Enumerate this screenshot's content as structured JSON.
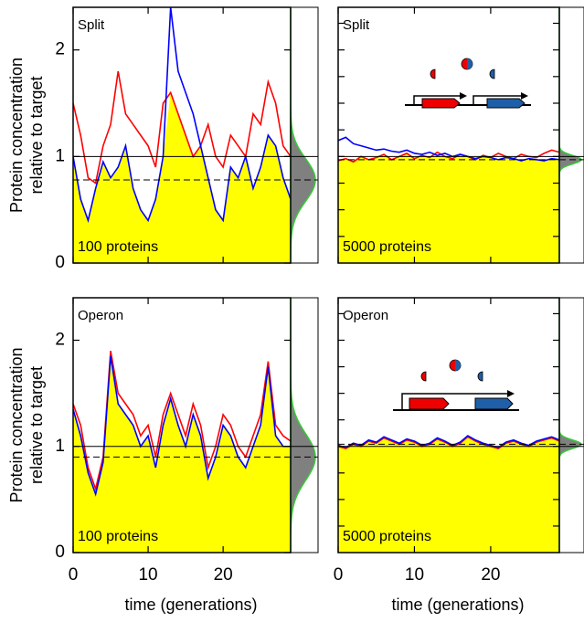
{
  "chart_data": [
    {
      "type": "line",
      "title": "Split",
      "annotation": "100 proteins",
      "ylabel": [
        "Protein concentration",
        "relative to target"
      ],
      "x": [
        0,
        1,
        2,
        3,
        4,
        5,
        6,
        7,
        8,
        9,
        10,
        11,
        12,
        13,
        14,
        15,
        16,
        17,
        18,
        19,
        20,
        21,
        22,
        23,
        24,
        25,
        26,
        27,
        28,
        29
      ],
      "series": [
        {
          "color": "#ff0000",
          "values": [
            1.5,
            1.2,
            0.8,
            0.75,
            1.1,
            1.3,
            1.8,
            1.4,
            1.3,
            1.2,
            1.1,
            0.9,
            1.5,
            1.6,
            1.4,
            1.2,
            1.0,
            1.1,
            1.3,
            1.0,
            0.9,
            1.2,
            1.1,
            1.0,
            1.4,
            1.3,
            1.7,
            1.5,
            1.1,
            1.0
          ]
        },
        {
          "color": "#0000ff",
          "values": [
            1.0,
            0.6,
            0.4,
            0.7,
            0.95,
            0.8,
            0.9,
            1.1,
            0.7,
            0.5,
            0.4,
            0.6,
            1.0,
            2.4,
            1.8,
            1.6,
            1.4,
            1.1,
            0.8,
            0.5,
            0.4,
            0.9,
            0.8,
            1.0,
            0.7,
            0.9,
            1.2,
            1.1,
            0.8,
            0.6
          ]
        }
      ],
      "fill_color": "#ffff00",
      "reference_line": 1,
      "distribution": {
        "mean": 0.78,
        "sd": 0.2,
        "color": "#808080",
        "edge": "#33cc33"
      },
      "xlim": [
        0,
        29
      ],
      "ylim": [
        0,
        2.4
      ],
      "xticks": [
        0,
        10,
        20
      ],
      "yticks": [
        0,
        1,
        2
      ],
      "xtick_labels": false,
      "ytick_labels": true
    },
    {
      "type": "line",
      "title": "Split",
      "annotation": "5000 proteins",
      "x": [
        0,
        1,
        2,
        3,
        4,
        5,
        6,
        7,
        8,
        9,
        10,
        11,
        12,
        13,
        14,
        15,
        16,
        17,
        18,
        19,
        20,
        21,
        22,
        23,
        24,
        25,
        26,
        27,
        28,
        29
      ],
      "series": [
        {
          "color": "#ff0000",
          "values": [
            0.96,
            0.98,
            0.95,
            1.0,
            0.97,
            0.99,
            1.02,
            0.97,
            1.0,
            1.03,
            0.98,
            1.01,
            0.99,
            1.04,
            1.0,
            0.98,
            1.02,
            1.0,
            0.97,
            1.01,
            0.99,
            1.03,
            1.0,
            0.98,
            1.02,
            1.0,
            0.99,
            1.03,
            1.06,
            1.04
          ]
        },
        {
          "color": "#0000ff",
          "values": [
            1.15,
            1.18,
            1.12,
            1.1,
            1.08,
            1.06,
            1.07,
            1.05,
            1.04,
            1.06,
            1.03,
            1.02,
            1.04,
            1.01,
            1.03,
            1.0,
            1.02,
            1.0,
            0.98,
            1.0,
            0.99,
            0.97,
            0.99,
            0.98,
            0.96,
            0.98,
            0.97,
            0.96,
            0.98,
            0.97
          ]
        }
      ],
      "fill_color": "#ffff00",
      "reference_line": 1,
      "distribution": {
        "mean": 0.97,
        "sd": 0.04,
        "color": "#808080",
        "edge": "#33cc33"
      },
      "xlim": [
        0,
        29
      ],
      "ylim": [
        0,
        2.4
      ],
      "xticks": [
        0,
        10,
        20
      ],
      "yticks": [
        0.25,
        0.5,
        0.75,
        1,
        1.25,
        1.5,
        1.75,
        2,
        2.25
      ],
      "xtick_labels": false,
      "ytick_labels": false
    },
    {
      "type": "line",
      "title": "Operon",
      "annotation": "100 proteins",
      "ylabel": [
        "Protein concentration",
        "relative to target"
      ],
      "xlabel": "time (generations)",
      "x": [
        0,
        1,
        2,
        3,
        4,
        5,
        6,
        7,
        8,
        9,
        10,
        11,
        12,
        13,
        14,
        15,
        16,
        17,
        18,
        19,
        20,
        21,
        22,
        23,
        24,
        25,
        26,
        27,
        28,
        29
      ],
      "series": [
        {
          "color": "#ff0000",
          "values": [
            1.4,
            1.2,
            0.8,
            0.6,
            0.9,
            1.9,
            1.5,
            1.4,
            1.3,
            1.1,
            1.2,
            0.9,
            1.3,
            1.5,
            1.3,
            1.1,
            1.4,
            1.2,
            0.8,
            1.0,
            1.3,
            1.2,
            1.0,
            0.9,
            1.1,
            1.3,
            1.8,
            1.2,
            1.1,
            1.05
          ]
        },
        {
          "color": "#0000ff",
          "values": [
            1.35,
            1.1,
            0.75,
            0.55,
            0.85,
            1.85,
            1.4,
            1.3,
            1.2,
            1.0,
            1.1,
            0.8,
            1.2,
            1.45,
            1.2,
            1.0,
            1.3,
            1.1,
            0.7,
            0.9,
            1.2,
            1.1,
            0.9,
            0.8,
            1.0,
            1.2,
            1.75,
            1.1,
            1.0,
            1.0
          ]
        }
      ],
      "fill_color": "#ffff00",
      "reference_line": 1,
      "distribution": {
        "mean": 0.9,
        "sd": 0.22,
        "color": "#808080",
        "edge": "#33cc33"
      },
      "xlim": [
        0,
        29
      ],
      "ylim": [
        0,
        2.4
      ],
      "xticks": [
        0,
        10,
        20
      ],
      "yticks": [
        0,
        1,
        2
      ],
      "xtick_labels": true,
      "ytick_labels": true
    },
    {
      "type": "line",
      "title": "Operon",
      "annotation": "5000 proteins",
      "xlabel": "time (generations)",
      "x": [
        0,
        1,
        2,
        3,
        4,
        5,
        6,
        7,
        8,
        9,
        10,
        11,
        12,
        13,
        14,
        15,
        16,
        17,
        18,
        19,
        20,
        21,
        22,
        23,
        24,
        25,
        26,
        27,
        28,
        29
      ],
      "series": [
        {
          "color": "#ff0000",
          "values": [
            1.0,
            0.98,
            1.02,
            1.0,
            1.05,
            1.03,
            1.08,
            1.05,
            1.02,
            1.06,
            1.04,
            1.0,
            1.02,
            1.07,
            1.04,
            1.0,
            1.03,
            1.09,
            1.05,
            1.02,
            1.0,
            0.98,
            1.03,
            1.05,
            1.02,
            1.0,
            1.04,
            1.06,
            1.08,
            1.05
          ]
        },
        {
          "color": "#0000ff",
          "values": [
            1.01,
            0.99,
            1.03,
            1.01,
            1.06,
            1.04,
            1.09,
            1.06,
            1.03,
            1.07,
            1.05,
            1.01,
            1.03,
            1.08,
            1.05,
            1.01,
            1.04,
            1.1,
            1.06,
            1.03,
            1.01,
            0.99,
            1.04,
            1.06,
            1.03,
            1.01,
            1.05,
            1.07,
            1.09,
            1.06
          ]
        }
      ],
      "fill_color": "#ffff00",
      "reference_line": 1,
      "distribution": {
        "mean": 1.02,
        "sd": 0.04,
        "color": "#808080",
        "edge": "#33cc33"
      },
      "xlim": [
        0,
        29
      ],
      "ylim": [
        0,
        2.4
      ],
      "xticks": [
        0,
        10,
        20
      ],
      "yticks": [
        0.25,
        0.5,
        0.75,
        1,
        1.25,
        1.5,
        1.75,
        2,
        2.25
      ],
      "xtick_labels": true,
      "ytick_labels": false
    }
  ]
}
